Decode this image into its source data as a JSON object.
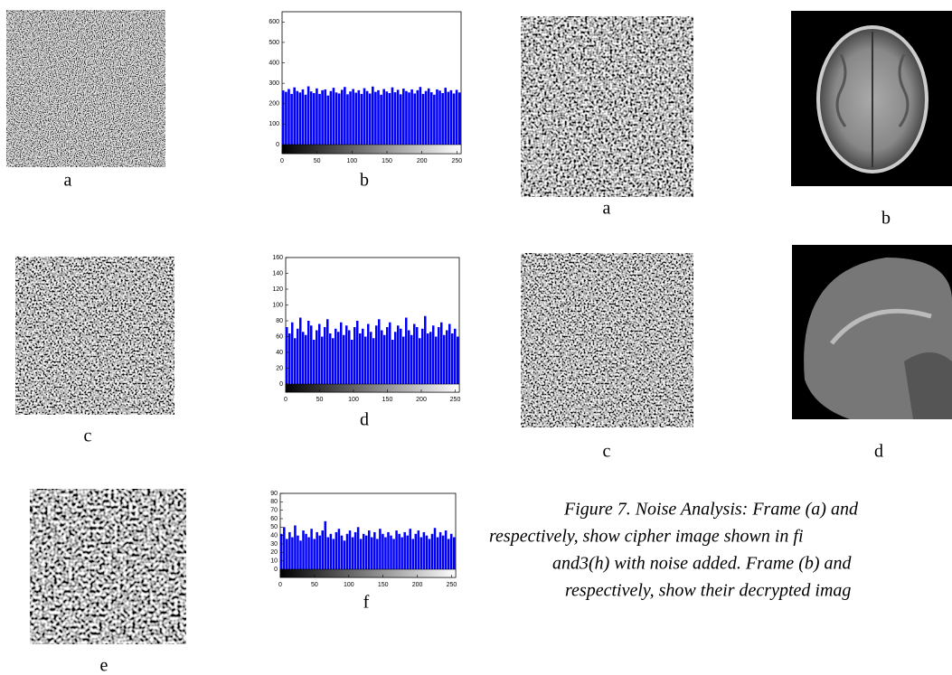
{
  "labels": {
    "left": [
      "a",
      "b",
      "c",
      "d",
      "e",
      "f"
    ],
    "right": [
      "a",
      "b",
      "c",
      "d"
    ]
  },
  "caption": [
    "Figure 7. Noise Analysis: Frame (a) and",
    "respectively, show cipher image shown in fi",
    "and3(h) with noise added. Frame (b) and",
    "respectively, show their decrypted imag"
  ],
  "chart_data": [
    {
      "type": "histogram",
      "color": "#0000ff",
      "bins": [
        0,
        4,
        8,
        12,
        16,
        20,
        24,
        28,
        32,
        36,
        40,
        44,
        48,
        52,
        56,
        60,
        64,
        68,
        72,
        76,
        80,
        84,
        88,
        92,
        96,
        100,
        104,
        108,
        112,
        116,
        120,
        124,
        128,
        132,
        136,
        140,
        144,
        148,
        152,
        156,
        160,
        164,
        168,
        172,
        176,
        180,
        184,
        188,
        192,
        196,
        200,
        204,
        208,
        212,
        216,
        220,
        224,
        228,
        232,
        236,
        240,
        244,
        248,
        252,
        256
      ],
      "values": [
        265,
        258,
        272,
        248,
        280,
        262,
        255,
        270,
        244,
        285,
        260,
        252,
        275,
        248,
        266,
        270,
        240,
        262,
        278,
        255,
        250,
        268,
        282,
        246,
        260,
        272,
        254,
        266,
        248,
        276,
        262,
        250,
        284,
        258,
        266,
        244,
        272,
        260,
        252,
        280,
        256,
        268,
        246,
        274,
        262,
        255,
        270,
        250,
        266,
        282,
        248,
        262,
        275,
        256,
        244,
        270,
        264,
        252,
        278,
        258,
        266,
        250,
        268,
        255
      ],
      "xlim": [
        0,
        256
      ],
      "ylim": [
        0,
        650
      ],
      "xticks": [
        0,
        50,
        100,
        150,
        200,
        250
      ],
      "yticks": [
        0,
        100,
        200,
        300,
        400,
        500,
        600
      ]
    },
    {
      "type": "histogram",
      "color": "#0000ff",
      "bins": [
        0,
        4,
        8,
        12,
        16,
        20,
        24,
        28,
        32,
        36,
        40,
        44,
        48,
        52,
        56,
        60,
        64,
        68,
        72,
        76,
        80,
        84,
        88,
        92,
        96,
        100,
        104,
        108,
        112,
        116,
        120,
        124,
        128,
        132,
        136,
        140,
        144,
        148,
        152,
        156,
        160,
        164,
        168,
        172,
        176,
        180,
        184,
        188,
        192,
        196,
        200,
        204,
        208,
        212,
        216,
        220,
        224,
        228,
        232,
        236,
        240,
        244,
        248,
        252,
        256
      ],
      "values": [
        72,
        64,
        78,
        58,
        70,
        84,
        66,
        62,
        80,
        74,
        56,
        68,
        76,
        60,
        72,
        82,
        64,
        58,
        70,
        66,
        78,
        62,
        74,
        68,
        56,
        72,
        80,
        64,
        70,
        60,
        76,
        66,
        58,
        74,
        82,
        68,
        62,
        72,
        78,
        56,
        66,
        74,
        70,
        60,
        84,
        68,
        62,
        76,
        72,
        58,
        70,
        86,
        64,
        66,
        74,
        60,
        72,
        78,
        62,
        68,
        76,
        64,
        70,
        60
      ],
      "xlim": [
        0,
        256
      ],
      "ylim": [
        0,
        160
      ],
      "xticks": [
        0,
        50,
        100,
        150,
        200,
        250
      ],
      "yticks": [
        0,
        20,
        40,
        60,
        80,
        100,
        120,
        140,
        160
      ]
    },
    {
      "type": "histogram",
      "color": "#0000ff",
      "bins": [
        0,
        4,
        8,
        12,
        16,
        20,
        24,
        28,
        32,
        36,
        40,
        44,
        48,
        52,
        56,
        60,
        64,
        68,
        72,
        76,
        80,
        84,
        88,
        92,
        96,
        100,
        104,
        108,
        112,
        116,
        120,
        124,
        128,
        132,
        136,
        140,
        144,
        148,
        152,
        156,
        160,
        164,
        168,
        172,
        176,
        180,
        184,
        188,
        192,
        196,
        200,
        204,
        208,
        212,
        216,
        220,
        224,
        228,
        232,
        236,
        240,
        244,
        248,
        252,
        256
      ],
      "values": [
        42,
        50,
        36,
        44,
        38,
        52,
        40,
        34,
        46,
        42,
        38,
        48,
        36,
        44,
        40,
        46,
        57,
        38,
        42,
        36,
        44,
        48,
        40,
        34,
        42,
        46,
        38,
        44,
        50,
        36,
        42,
        40,
        46,
        38,
        44,
        36,
        48,
        42,
        38,
        44,
        40,
        36,
        46,
        42,
        38,
        44,
        40,
        48,
        36,
        42,
        46,
        38,
        44,
        40,
        36,
        42,
        49,
        38,
        44,
        40,
        46,
        36,
        42,
        38
      ],
      "xlim": [
        0,
        256
      ],
      "ylim": [
        0,
        90
      ],
      "xticks": [
        0,
        50,
        100,
        150,
        200,
        250
      ],
      "yticks": [
        0,
        10,
        20,
        30,
        40,
        50,
        60,
        70,
        80,
        90
      ]
    }
  ]
}
